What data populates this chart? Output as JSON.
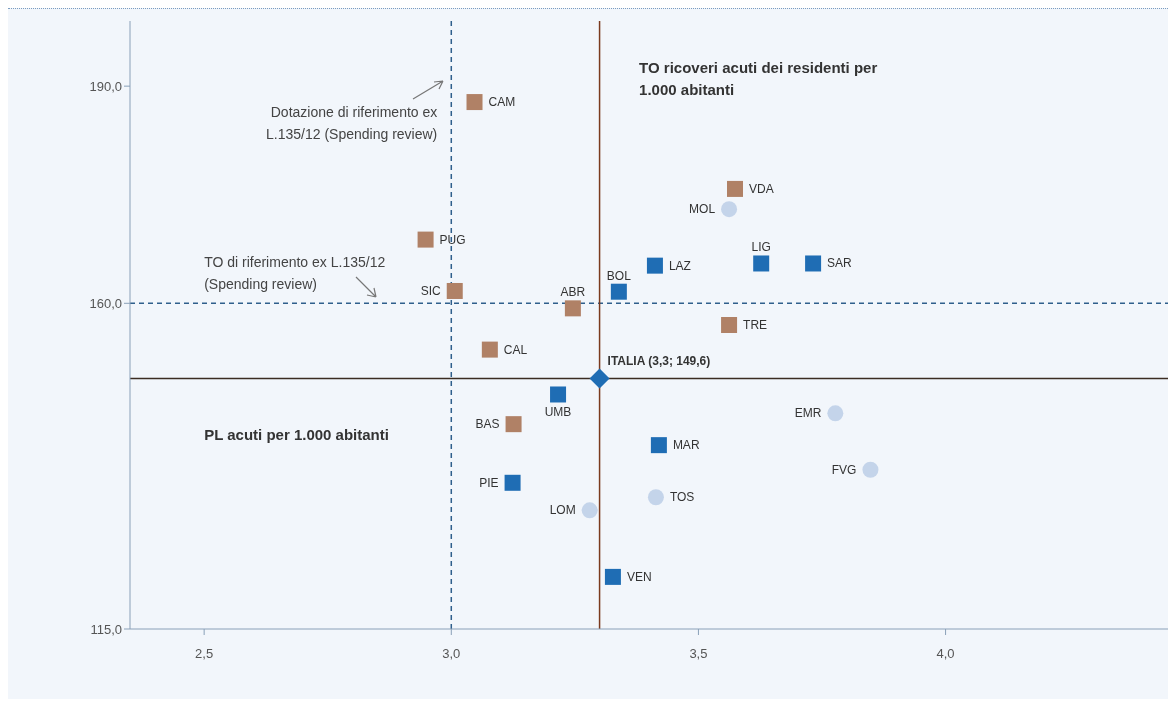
{
  "chart_data": {
    "type": "scatter",
    "xlabel": "PL acuti per 1.000 abitanti",
    "ylabel": "TO ricoveri acuti dei residenti per 1.000 abitanti",
    "xlim": [
      2.35,
      4.45
    ],
    "ylim": [
      115,
      199
    ],
    "xticks": [
      {
        "value": 2.5,
        "label": "2,5"
      },
      {
        "value": 3.0,
        "label": "3,0"
      },
      {
        "value": 3.5,
        "label": "3,5"
      },
      {
        "value": 4.0,
        "label": "4,0"
      }
    ],
    "yticks": [
      {
        "value": 115,
        "label": "115,0"
      },
      {
        "value": 160,
        "label": "160,0"
      },
      {
        "value": 190,
        "label": "190,0"
      }
    ],
    "series": [
      {
        "color": "#b08166",
        "marker": "square",
        "x": [
          3.047,
          3.574,
          2.948,
          3.007,
          3.246,
          3.562,
          3.078,
          3.126
        ],
        "values": [
          187.8,
          175.8,
          168.8,
          161.7,
          159.3,
          157.0,
          153.6,
          143.3
        ]
      },
      {
        "color": "#1f6db4",
        "marker": "square",
        "x": [
          3.412,
          3.627,
          3.732,
          3.339,
          3.216,
          3.42,
          3.124,
          3.327
        ],
        "values": [
          165.2,
          165.5,
          165.5,
          161.6,
          147.4,
          140.4,
          135.2,
          122.2
        ]
      },
      {
        "color": "#c4d4ea",
        "marker": "circle",
        "x": [
          3.562,
          3.777,
          3.848,
          3.414,
          3.28
        ],
        "values": [
          173.0,
          144.8,
          137.0,
          133.2,
          131.4
        ]
      },
      {
        "color": "#1f6db4",
        "marker": "diamond",
        "x": [
          3.3
        ],
        "values": [
          149.6
        ]
      }
    ],
    "ref_lines": [
      {
        "axis": "x",
        "value": 3.0,
        "line_style": "dashed",
        "color": "#2f5f8c",
        "label": "Dotazione  di riferimento ex L.135/12 (Spending review)"
      },
      {
        "axis": "y",
        "value": 160,
        "line_style": "dashed",
        "color": "#2f5f8c",
        "label": "TO di riferimento ex L.135/12 (Spending review)"
      },
      {
        "axis": "y",
        "value": 149.6,
        "line_style": "solid",
        "color": "#3b2c22"
      },
      {
        "axis": "x",
        "value": 3.3,
        "line_style": "solid",
        "color": "#7a3a1e"
      }
    ],
    "annotations": [
      {
        "text": "CAM",
        "x": 3.047,
        "y": 187.8
      },
      {
        "text": "VDA",
        "x": 3.574,
        "y": 175.8
      },
      {
        "text": "PUG",
        "x": 2.948,
        "y": 168.8
      },
      {
        "text": "SIC",
        "x": 3.007,
        "y": 161.7
      },
      {
        "text": "ABR",
        "x": 3.246,
        "y": 159.3
      },
      {
        "text": "TRE",
        "x": 3.562,
        "y": 157.0
      },
      {
        "text": "CAL",
        "x": 3.078,
        "y": 153.6
      },
      {
        "text": "BAS",
        "x": 3.126,
        "y": 143.3
      },
      {
        "text": "LAZ",
        "x": 3.412,
        "y": 165.2
      },
      {
        "text": "LIG",
        "x": 3.627,
        "y": 165.5
      },
      {
        "text": "SAR",
        "x": 3.732,
        "y": 165.5
      },
      {
        "text": "BOL",
        "x": 3.339,
        "y": 161.6
      },
      {
        "text": "UMB",
        "x": 3.216,
        "y": 147.4
      },
      {
        "text": "MAR",
        "x": 3.42,
        "y": 140.4
      },
      {
        "text": "PIE",
        "x": 3.124,
        "y": 135.2
      },
      {
        "text": "VEN",
        "x": 3.327,
        "y": 122.2
      },
      {
        "text": "MOL",
        "x": 3.562,
        "y": 173.0
      },
      {
        "text": "EMR",
        "x": 3.777,
        "y": 144.8
      },
      {
        "text": "FVG",
        "x": 3.848,
        "y": 137.0
      },
      {
        "text": "TOS",
        "x": 3.414,
        "y": 133.2
      },
      {
        "text": "LOM",
        "x": 3.28,
        "y": 131.4
      },
      {
        "text": "ITALIA (3,3; 149,6)",
        "x": 3.3,
        "y": 149.6
      }
    ]
  }
}
